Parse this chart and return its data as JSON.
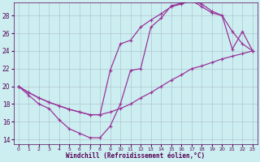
{
  "xlabel": "Windchill (Refroidissement éolien,°C)",
  "xlim": [
    -0.5,
    23.5
  ],
  "ylim": [
    13.5,
    29.5
  ],
  "bg_color": "#cceef0",
  "grid_color": "#aabbcc",
  "line_color": "#993399",
  "line1_x": [
    0,
    1,
    2,
    3,
    4,
    5,
    6,
    7,
    8,
    9,
    10,
    11,
    12,
    13,
    14,
    15,
    16,
    17,
    18,
    19,
    20,
    21,
    22,
    23
  ],
  "line1_y": [
    20.0,
    19.0,
    18.0,
    17.5,
    16.2,
    15.2,
    14.7,
    14.2,
    14.2,
    15.5,
    18.0,
    21.8,
    22.0,
    26.7,
    27.7,
    29.1,
    29.4,
    29.7,
    29.3,
    28.5,
    28.0,
    26.2,
    24.8,
    24.0
  ],
  "line2_x": [
    0,
    1,
    2,
    3,
    4,
    5,
    6,
    7,
    8,
    9,
    10,
    11,
    12,
    13,
    14,
    15,
    16,
    17,
    18,
    19,
    20,
    21,
    22,
    23
  ],
  "line2_y": [
    20.0,
    19.3,
    18.7,
    18.2,
    17.8,
    17.4,
    17.1,
    16.8,
    16.8,
    17.1,
    17.5,
    18.0,
    18.7,
    19.3,
    20.0,
    20.7,
    21.3,
    22.0,
    22.3,
    22.7,
    23.1,
    23.4,
    23.7,
    24.0
  ],
  "line3_x": [
    0,
    1,
    2,
    3,
    4,
    5,
    6,
    7,
    8,
    9,
    10,
    11,
    12,
    13,
    14,
    15,
    16,
    17,
    18,
    19,
    20,
    21,
    22,
    23
  ],
  "line3_y": [
    20.0,
    19.3,
    18.7,
    18.2,
    17.8,
    17.4,
    17.1,
    16.8,
    16.8,
    21.8,
    24.8,
    25.2,
    26.7,
    27.5,
    28.2,
    29.0,
    29.3,
    29.7,
    29.0,
    28.3,
    28.0,
    24.2,
    26.2,
    24.0
  ]
}
